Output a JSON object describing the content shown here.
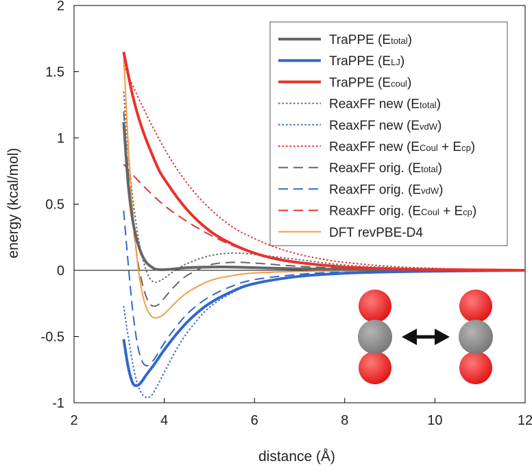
{
  "chart_data": {
    "type": "line",
    "xlabel": "distance (Å)",
    "ylabel": "energy (kcal/mol)",
    "xlim": [
      2,
      12
    ],
    "ylim": [
      -1,
      2
    ],
    "xticks": [
      2,
      4,
      6,
      8,
      10,
      12
    ],
    "yticks": [
      -1,
      -0.5,
      0,
      0.5,
      1,
      1.5,
      2
    ],
    "ytick_labels": [
      "-1",
      "-0.5",
      "0",
      "0.5",
      "1",
      "1.5",
      "2"
    ],
    "zero_line": true,
    "legend_position": "top-right",
    "series": [
      {
        "name": "TraPPE (Etotal)",
        "label_main": "TraPPE (E",
        "label_sub": "total",
        "label_end": ")",
        "color": "#666666",
        "style": "solid",
        "width": 4,
        "x": [
          3.1,
          3.2,
          3.3,
          3.4,
          3.5,
          3.6,
          3.7,
          3.8,
          3.9,
          4.0,
          4.2,
          4.5,
          5.0,
          5.5,
          6.0,
          7.0,
          8.0,
          9.0,
          10.0,
          12.0
        ],
        "y": [
          1.12,
          0.65,
          0.38,
          0.22,
          0.12,
          0.06,
          0.03,
          0.01,
          0.005,
          0.005,
          0.01,
          0.02,
          0.025,
          0.025,
          0.02,
          0.012,
          0.007,
          0.004,
          0.002,
          0.0
        ]
      },
      {
        "name": "TraPPE (ELJ)",
        "label_main": "TraPPE (E",
        "label_sub": "LJ",
        "label_end": ")",
        "color": "#3366cc",
        "style": "solid",
        "width": 4,
        "x": [
          3.1,
          3.2,
          3.3,
          3.4,
          3.5,
          3.6,
          3.8,
          4.0,
          4.3,
          4.6,
          5.0,
          5.5,
          6.0,
          7.0,
          8.0,
          9.0,
          10.0,
          12.0
        ],
        "y": [
          -0.52,
          -0.73,
          -0.85,
          -0.87,
          -0.84,
          -0.79,
          -0.7,
          -0.6,
          -0.47,
          -0.36,
          -0.25,
          -0.16,
          -0.1,
          -0.045,
          -0.022,
          -0.012,
          -0.006,
          0.0
        ]
      },
      {
        "name": "TraPPE (Ecoul)",
        "label_main": "TraPPE (E",
        "label_sub": "coul",
        "label_end": ")",
        "color": "#e8322c",
        "style": "solid",
        "width": 4,
        "x": [
          3.1,
          3.3,
          3.5,
          3.8,
          4.0,
          4.5,
          5.0,
          5.5,
          6.0,
          6.5,
          7.0,
          8.0,
          9.0,
          10.0,
          11.0,
          12.0
        ],
        "y": [
          1.65,
          1.32,
          1.08,
          0.82,
          0.69,
          0.46,
          0.3,
          0.2,
          0.13,
          0.085,
          0.058,
          0.025,
          0.012,
          0.006,
          0.003,
          0.0
        ]
      },
      {
        "name": "ReaxFF new (Etotal)",
        "label_main": "ReaxFF new (E",
        "label_sub": "total",
        "label_end": ")",
        "color": "#666666",
        "style": "dotted",
        "width": 2,
        "x": [
          3.1,
          3.2,
          3.3,
          3.4,
          3.5,
          3.6,
          3.7,
          3.8,
          3.9,
          4.0,
          4.2,
          4.5,
          5.0,
          5.5,
          6.0,
          7.0,
          8.0,
          9.0,
          10.0,
          12.0
        ],
        "y": [
          1.35,
          0.9,
          0.55,
          0.3,
          0.12,
          0.0,
          -0.07,
          -0.09,
          -0.08,
          -0.06,
          -0.01,
          0.05,
          0.11,
          0.13,
          0.12,
          0.08,
          0.04,
          0.02,
          0.008,
          0.0
        ]
      },
      {
        "name": "ReaxFF new (EvdW)",
        "label_main": "ReaxFF new (E",
        "label_sub": "vdW",
        "label_end": ")",
        "color": "#3366cc",
        "style": "dotted",
        "width": 2,
        "x": [
          3.1,
          3.2,
          3.3,
          3.4,
          3.5,
          3.6,
          3.7,
          3.8,
          4.0,
          4.3,
          4.6,
          5.0,
          5.5,
          6.0,
          7.0,
          8.0,
          9.0,
          10.0,
          12.0
        ],
        "y": [
          -0.27,
          -0.5,
          -0.7,
          -0.85,
          -0.93,
          -0.96,
          -0.95,
          -0.9,
          -0.77,
          -0.58,
          -0.43,
          -0.28,
          -0.17,
          -0.1,
          -0.04,
          -0.018,
          -0.008,
          -0.004,
          0.0
        ]
      },
      {
        "name": "ReaxFF new (ECoul + Ecp)",
        "label_main": "ReaxFF new (E",
        "label_sub": "Coul",
        "label_mid": " + E",
        "label_sub2": "cp",
        "label_end": ")",
        "color": "#e8322c",
        "style": "dotted",
        "width": 2,
        "x": [
          3.1,
          3.5,
          4.0,
          4.5,
          5.0,
          5.5,
          6.0,
          6.5,
          7.0,
          7.5,
          8.0,
          9.0,
          10.0,
          11.0,
          12.0
        ],
        "y": [
          1.55,
          1.25,
          0.92,
          0.66,
          0.47,
          0.33,
          0.24,
          0.17,
          0.12,
          0.085,
          0.06,
          0.03,
          0.015,
          0.006,
          0.0
        ]
      },
      {
        "name": "ReaxFF orig. (Etotal)",
        "label_main": "ReaxFF orig. (E",
        "label_sub": "total",
        "label_end": ")",
        "color": "#666666",
        "style": "dashed",
        "width": 2,
        "x": [
          3.1,
          3.2,
          3.3,
          3.4,
          3.5,
          3.6,
          3.7,
          3.8,
          3.9,
          4.0,
          4.2,
          4.5,
          5.0,
          5.5,
          6.0,
          7.0,
          8.0,
          9.0,
          10.0,
          12.0
        ],
        "y": [
          1.2,
          0.75,
          0.38,
          0.1,
          -0.08,
          -0.2,
          -0.26,
          -0.27,
          -0.25,
          -0.21,
          -0.13,
          -0.04,
          0.04,
          0.06,
          0.055,
          0.03,
          0.015,
          0.006,
          0.002,
          0.0
        ]
      },
      {
        "name": "ReaxFF orig. (EvdW)",
        "label_main": "ReaxFF orig. (E",
        "label_sub": "vdW",
        "label_end": ")",
        "color": "#3366cc",
        "style": "dashed",
        "width": 2,
        "x": [
          3.1,
          3.2,
          3.3,
          3.4,
          3.5,
          3.6,
          3.7,
          3.8,
          4.0,
          4.3,
          4.6,
          5.0,
          5.5,
          6.0,
          7.0,
          8.0,
          9.0,
          10.0,
          12.0
        ],
        "y": [
          0.45,
          0.05,
          -0.3,
          -0.55,
          -0.68,
          -0.72,
          -0.7,
          -0.66,
          -0.55,
          -0.41,
          -0.3,
          -0.2,
          -0.12,
          -0.07,
          -0.03,
          -0.012,
          -0.005,
          -0.002,
          0.0
        ]
      },
      {
        "name": "ReaxFF orig. (ECoul + Ecp)",
        "label_main": "ReaxFF orig. (E",
        "label_sub": "Coul",
        "label_mid": " + E",
        "label_sub2": "cp",
        "label_end": ")",
        "color": "#e8322c",
        "style": "dashed",
        "width": 2,
        "x": [
          3.1,
          3.5,
          4.0,
          4.5,
          5.0,
          5.5,
          6.0,
          6.5,
          7.0,
          7.5,
          8.0,
          9.0,
          10.0,
          11.0,
          12.0
        ],
        "y": [
          0.8,
          0.65,
          0.49,
          0.37,
          0.27,
          0.19,
          0.13,
          0.09,
          0.06,
          0.04,
          0.028,
          0.012,
          0.005,
          0.002,
          0.0
        ]
      },
      {
        "name": "DFT revPBE-D4",
        "label_main": "DFT revPBE-D4",
        "color": "#f39c4a",
        "style": "solid",
        "width": 2,
        "x": [
          3.1,
          3.2,
          3.3,
          3.4,
          3.5,
          3.6,
          3.7,
          3.8,
          3.9,
          4.0,
          4.2,
          4.5,
          5.0,
          5.5,
          6.0,
          7.0,
          8.0,
          9.0,
          10.0,
          12.0
        ],
        "y": [
          1.62,
          0.95,
          0.45,
          0.08,
          -0.15,
          -0.28,
          -0.34,
          -0.36,
          -0.35,
          -0.33,
          -0.26,
          -0.17,
          -0.08,
          -0.04,
          -0.02,
          -0.008,
          -0.004,
          -0.002,
          -0.001,
          0.0
        ]
      }
    ]
  },
  "inset": {
    "description": "CO2 dimer",
    "oxygen_color": "#e01818",
    "carbon_color": "#7a7a7a",
    "arrow_color": "#111111"
  }
}
